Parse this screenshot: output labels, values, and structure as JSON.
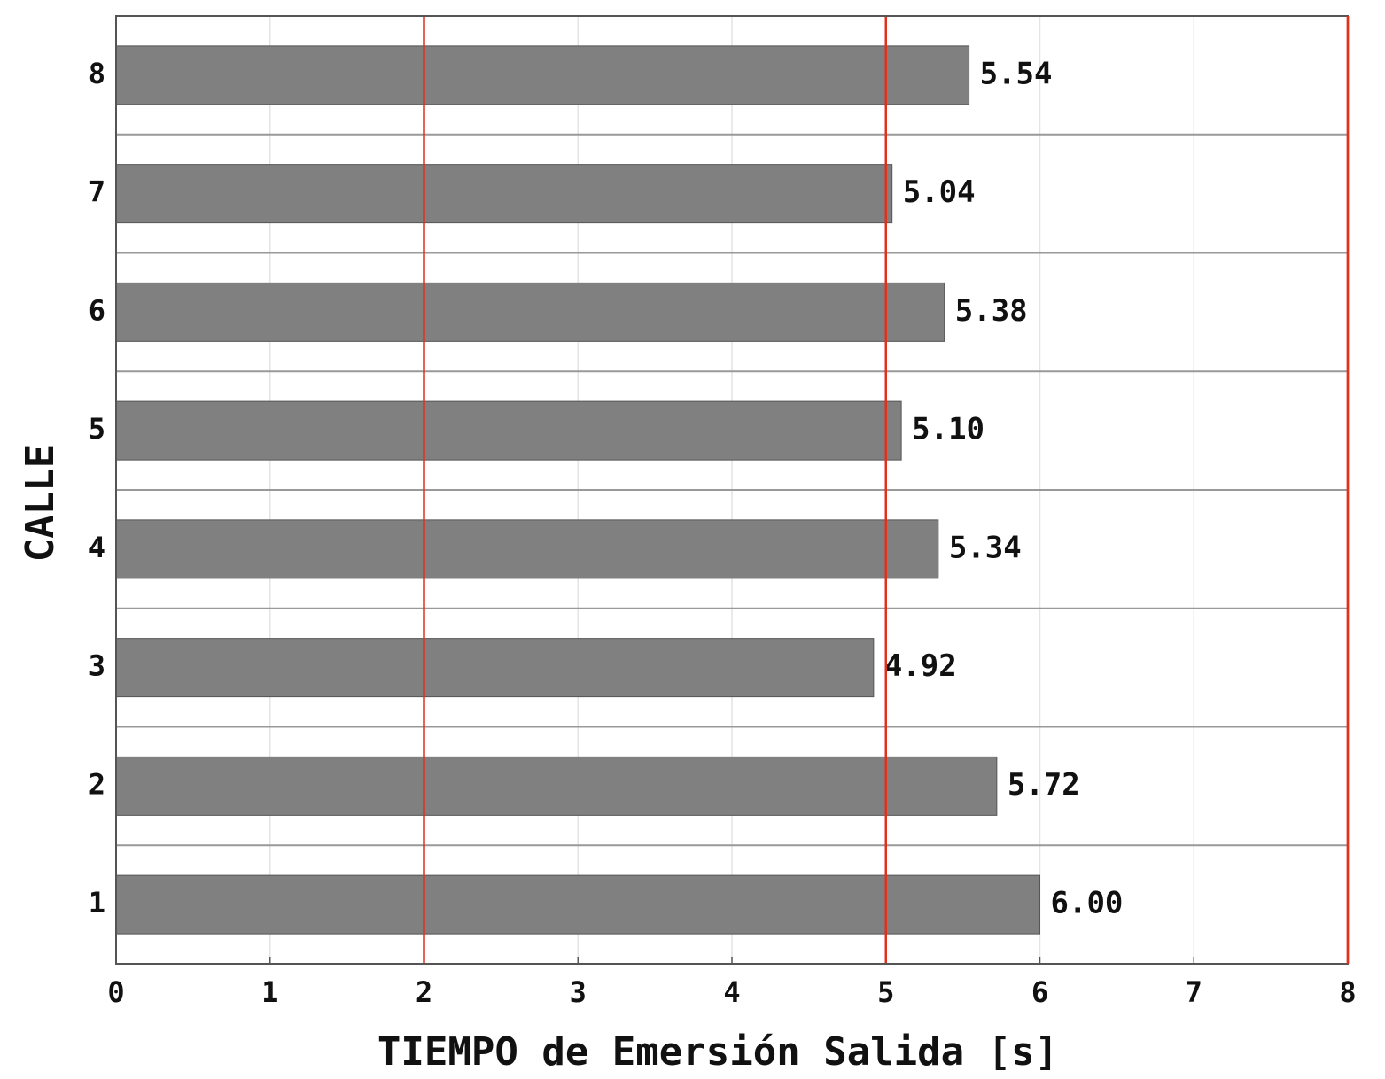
{
  "chart_data": {
    "type": "barh",
    "categories": [
      "1",
      "2",
      "3",
      "4",
      "5",
      "6",
      "7",
      "8"
    ],
    "values": [
      6.0,
      5.72,
      4.92,
      5.34,
      5.1,
      5.38,
      5.04,
      5.54
    ],
    "value_labels": [
      "6.00",
      "5.72",
      "4.92",
      "5.34",
      "5.10",
      "5.38",
      "5.04",
      "5.54"
    ],
    "color": "#808080",
    "xlabel": "TIEMPO de Emersión Salida [s]",
    "ylabel": "CALLE",
    "xlim": [
      0,
      8
    ],
    "xticks": [
      0,
      1,
      2,
      3,
      4,
      5,
      6,
      7,
      8
    ],
    "grid": true,
    "reference_lines": [
      2,
      5,
      8
    ],
    "reference_color": "#e0301e"
  }
}
